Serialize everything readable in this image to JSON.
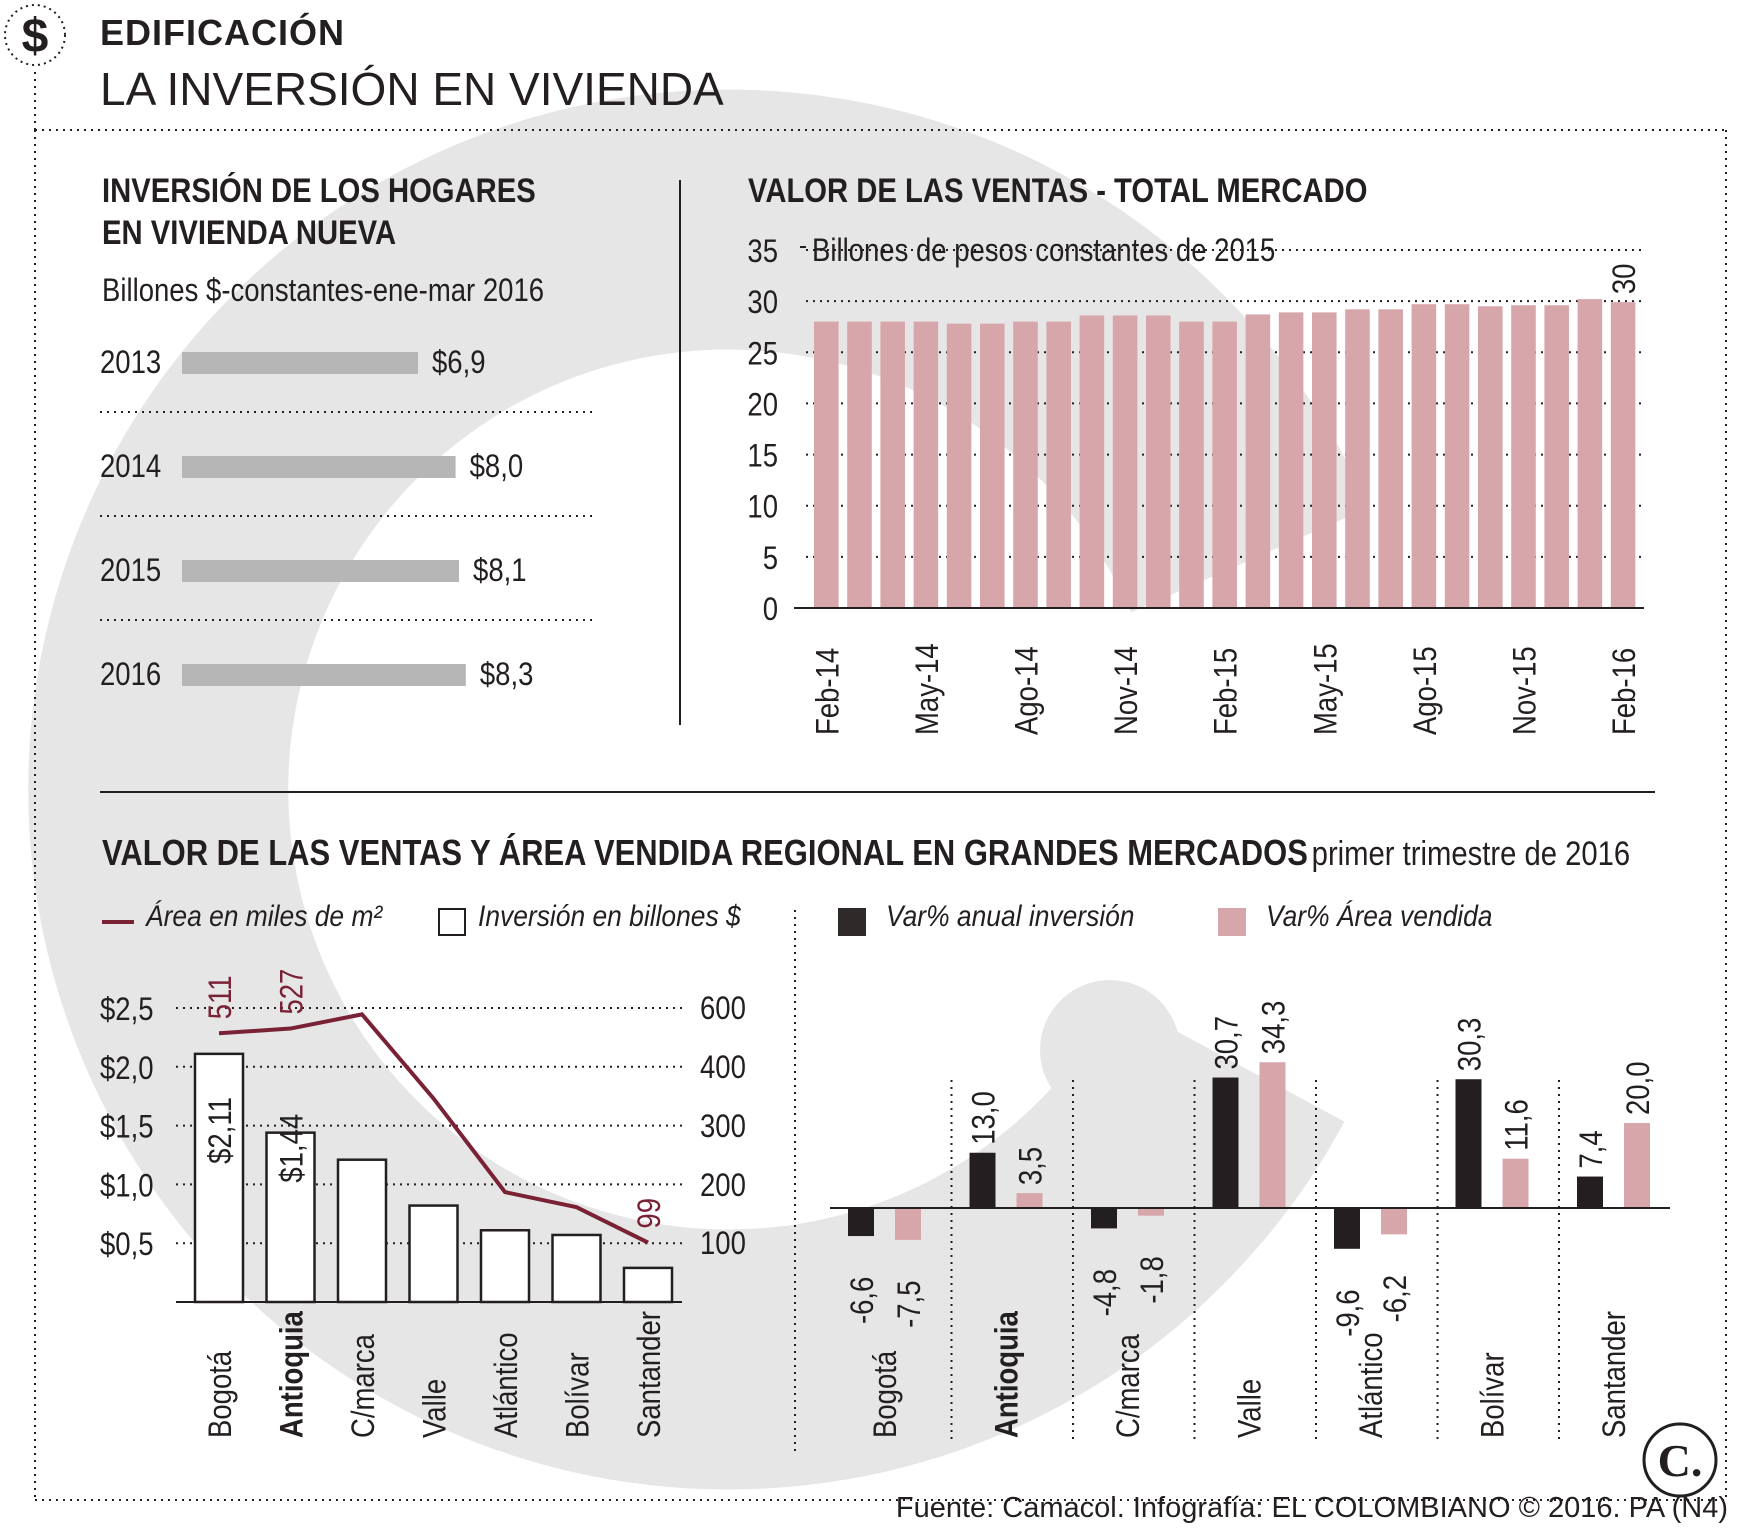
{
  "header": {
    "icon": "dollar-icon",
    "kicker": "EDIFICACIÓN",
    "title": "LA INVERSIÓN EN VIVIENDA"
  },
  "colors": {
    "dark": "#231f20",
    "gray_bar": "#b6b6b6",
    "pink": "#d7a6aa",
    "maroon": "#7a2235",
    "watermark": "#e3e3e3"
  },
  "chart_data": [
    {
      "id": "inversion-hogares",
      "type": "bar",
      "orientation": "horizontal",
      "title_line1": "INVERSIÓN DE LOS HOGARES",
      "title_line2": "EN VIVIENDA NUEVA",
      "subtitle": "Billones $-constantes-ene-mar 2016",
      "categories": [
        "2013",
        "2014",
        "2015",
        "2016"
      ],
      "values": [
        6.9,
        8.0,
        8.1,
        8.3
      ],
      "labels": [
        "$6,9",
        "$8,0",
        "$8,1",
        "$8,3"
      ]
    },
    {
      "id": "valor-ventas-total",
      "type": "bar",
      "title": "VALOR DE LAS VENTAS - TOTAL MERCADO",
      "ylabel": "Billones de pesos constantes de 2015",
      "ylim": [
        0,
        35
      ],
      "yticks": [
        "0",
        "5",
        "10",
        "15",
        "20",
        "25",
        "30",
        "35"
      ],
      "xtick_labels": [
        "Feb-14",
        "May-14",
        "Ago-14",
        "Nov-14",
        "Feb-15",
        "May-15",
        "Ago-15",
        "Nov-15",
        "Feb-16"
      ],
      "values": [
        28.0,
        28.0,
        28.0,
        28.0,
        27.8,
        27.8,
        28.0,
        28.0,
        28.6,
        28.6,
        28.6,
        28.0,
        28.0,
        28.7,
        28.9,
        28.9,
        29.2,
        29.2,
        29.7,
        29.7,
        29.5,
        29.6,
        29.6,
        30.2,
        29.9
      ],
      "last_label": "30"
    },
    {
      "id": "regional-inversion-area",
      "type": "bar",
      "title": "VALOR DE LAS VENTAS Y ÁREA VENDIDA REGIONAL EN GRANDES MERCADOS",
      "title_suffix": "primer trimestre de 2016",
      "legend_line": "Área en miles de m²",
      "legend_bar": "Inversión en billones $",
      "categories": [
        "Bogotá",
        "Antioquia",
        "C/marca",
        "Valle",
        "Atlántico",
        "Bolívar",
        "Santander"
      ],
      "highlight_category": "Antioquia",
      "left_axis": {
        "ticks": [
          "$0,5",
          "$1,0",
          "$1,5",
          "$2,0",
          "$2,5"
        ]
      },
      "right_axis": {
        "ticks": [
          "100",
          "200",
          "300",
          "400",
          "600"
        ]
      },
      "inversion": [
        2.11,
        1.44,
        1.21,
        0.82,
        0.61,
        0.57,
        0.29
      ],
      "inversion_labels": {
        "Bogotá": "$2,11",
        "Antioquia": "$1,44"
      },
      "area": [
        511,
        527,
        575,
        345,
        186,
        160,
        99
      ],
      "area_labels": {
        "Bogotá": "511",
        "Antioquia": "527",
        "Santander": "99"
      }
    },
    {
      "id": "variaciones-regionales",
      "type": "bar",
      "legend_inv": "Var% anual inversión",
      "legend_area": "Var% Área vendida",
      "categories": [
        "Bogotá",
        "Antioquia",
        "C/marca",
        "Valle",
        "Atlántico",
        "Bolívar",
        "Santander"
      ],
      "series": [
        {
          "name": "Var% anual inversión",
          "values": [
            -6.6,
            13.0,
            -4.8,
            30.7,
            -9.6,
            30.3,
            7.4
          ],
          "labels": [
            "-6,6",
            "13,0",
            "-4,8",
            "30,7",
            "-9,6",
            "30,3",
            "7,4"
          ]
        },
        {
          "name": "Var% Área vendida",
          "values": [
            -7.5,
            3.5,
            -1.8,
            34.3,
            -6.2,
            11.6,
            20.0
          ],
          "labels": [
            "-7,5",
            "3,5",
            "-1,8",
            "34,3",
            "-6,2",
            "11,6",
            "20,0"
          ]
        }
      ]
    }
  ],
  "footer": {
    "source": "Fuente: Camacol. Infografía: EL COLOMBIANO © 2016. PA (N4)",
    "logo_text": "C."
  }
}
